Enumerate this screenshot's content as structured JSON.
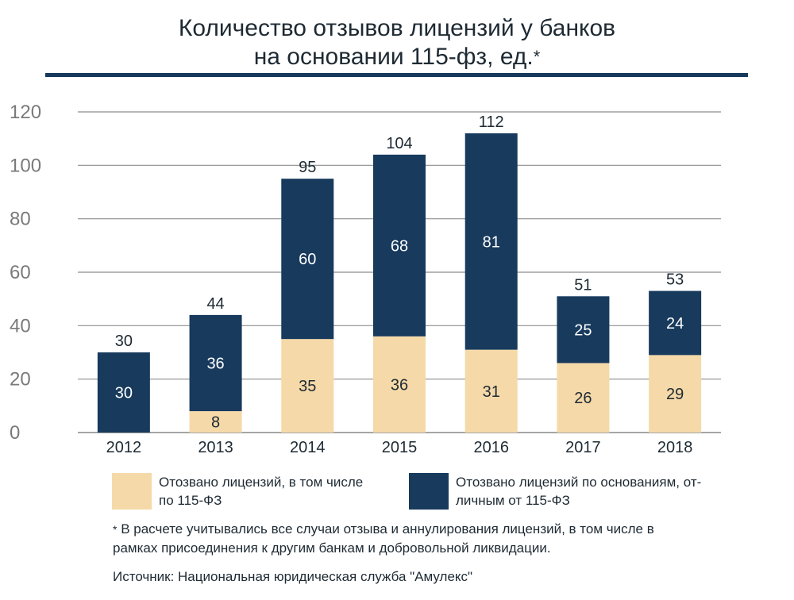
{
  "title_line1": "Количество отзывов лицензий у банков",
  "title_line2": "на основании 115-фз, ед.",
  "title_mark": "*",
  "colors": {
    "beige": "#f5d9a8",
    "navy": "#173a5d",
    "grid": "#8e8e8e",
    "rule": "#17395c"
  },
  "chart_data": {
    "type": "bar",
    "stacked": true,
    "title": "Количество отзывов лицензий у банков на основании 115-фз, ед.*",
    "categories": [
      "2012",
      "2013",
      "2014",
      "2015",
      "2016",
      "2017",
      "2018"
    ],
    "series": [
      {
        "name": "Отозвано лицензий, в том числе по 115-ФЗ",
        "values": [
          0,
          8,
          35,
          36,
          31,
          26,
          29
        ],
        "labels": [
          "",
          "8",
          "35",
          "36",
          "31",
          "26",
          "29"
        ],
        "color": "#f5d9a8"
      },
      {
        "name": "Отозвано лицензий по основаниям, от-личным от 115-ФЗ",
        "values": [
          30,
          36,
          60,
          68,
          81,
          25,
          24
        ],
        "labels": [
          "30",
          "36",
          "60",
          "68",
          "81",
          "25",
          "24"
        ],
        "color": "#173a5d"
      }
    ],
    "totals": [
      30,
      44,
      95,
      104,
      112,
      51,
      53
    ],
    "ylim": [
      0,
      120
    ],
    "yticks": [
      0,
      20,
      40,
      60,
      80,
      100,
      120
    ],
    "grid": true,
    "legend": "bottom"
  },
  "legend": [
    {
      "text_line1": "Отозвано лицензий, в том числе",
      "text_line2": "по 115-ФЗ",
      "color": "#f5d9a8"
    },
    {
      "text_line1": "Отозвано лицензий по основаниям, от-",
      "text_line2": "личным от 115-ФЗ",
      "color": "#173a5d"
    }
  ],
  "note_mark": "*",
  "note_line1": "В расчете учитывались все случаи отзыва и аннулирования лицензий, в том числе в",
  "note_line2": "рамках присоединения к другим банкам и добровольной ликвидации.",
  "source": "Источник: Национальная юридическая служба \"Амулекс\""
}
